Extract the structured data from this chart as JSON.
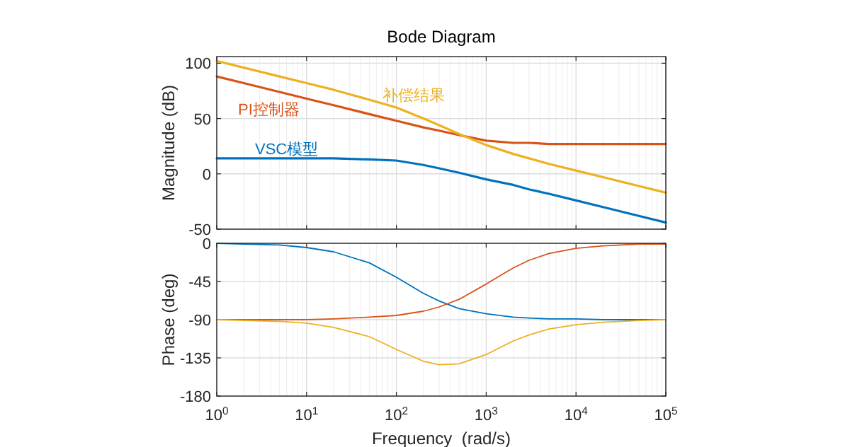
{
  "chart_data": [
    {
      "type": "line",
      "title": "Bode Diagram",
      "ylabel": "Magnitude (dB)",
      "log": "x",
      "xlim": [
        1,
        100000
      ],
      "xticks": [
        1,
        10,
        100,
        1000,
        10000,
        100000
      ],
      "ylim": [
        -50,
        106
      ],
      "yticks": [
        -50,
        0,
        50,
        100
      ],
      "grid": true,
      "tick_labels": "y",
      "x": [
        1,
        2,
        5,
        10,
        20,
        50,
        100,
        200,
        300,
        500,
        1000,
        2000,
        3000,
        5000,
        10000,
        20000,
        50000,
        100000
      ],
      "series": [
        {
          "name": "VSC模型",
          "color": "#0072bd",
          "values": [
            14,
            14,
            14,
            14,
            14,
            13,
            12,
            8,
            5,
            1,
            -5,
            -10,
            -14,
            -18,
            -24,
            -30,
            -38,
            -44
          ]
        },
        {
          "name": "PI控制器",
          "color": "#d95319",
          "values": [
            88,
            82,
            74,
            68,
            62,
            54,
            48,
            42,
            39,
            35,
            30,
            28,
            28,
            27,
            27,
            27,
            27,
            27
          ]
        },
        {
          "name": "补偿结果",
          "color": "#edb120",
          "values": [
            102,
            96,
            88,
            82,
            76,
            67,
            60,
            50,
            44,
            36,
            26,
            18,
            14,
            9,
            3,
            -3,
            -11,
            -17
          ]
        }
      ]
    },
    {
      "type": "line",
      "xlabel": "Frequency  (rad/s)",
      "ylabel": "Phase (deg)",
      "log": "x",
      "xlim": [
        1,
        100000
      ],
      "xticks": [
        {
          "value": 1,
          "label": "10$^{0}$"
        },
        {
          "value": 10,
          "label": "10$^{1}$"
        },
        {
          "value": 100,
          "label": "10$^{2}$"
        },
        {
          "value": 1000,
          "label": "10$^{3}$"
        },
        {
          "value": 10000,
          "label": "10$^{4}$"
        },
        {
          "value": 100000,
          "label": "10$^{5}$"
        }
      ],
      "ylim": [
        -180,
        0
      ],
      "yticks": [
        0,
        -45,
        -90,
        -135,
        -180
      ],
      "grid": true,
      "x": [
        1,
        2,
        5,
        10,
        20,
        50,
        100,
        200,
        300,
        500,
        1000,
        2000,
        3000,
        5000,
        10000,
        20000,
        50000,
        100000
      ],
      "series": [
        {
          "color": "#0072bd",
          "values": [
            0,
            -1,
            -2,
            -5,
            -10,
            -23,
            -40,
            -59,
            -68,
            -77,
            -83,
            -87,
            -88,
            -89,
            -89,
            -90,
            -90,
            -90
          ]
        },
        {
          "color": "#d95319",
          "values": [
            -90,
            -90,
            -90,
            -90,
            -89,
            -87,
            -85,
            -80,
            -75,
            -66,
            -48,
            -29,
            -20,
            -12,
            -6,
            -3,
            -1,
            -1
          ]
        },
        {
          "color": "#edb120",
          "values": [
            -90,
            -91,
            -92,
            -94,
            -99,
            -110,
            -125,
            -139,
            -143,
            -142,
            -131,
            -115,
            -108,
            -101,
            -96,
            -93,
            -91,
            -90
          ]
        }
      ]
    }
  ]
}
